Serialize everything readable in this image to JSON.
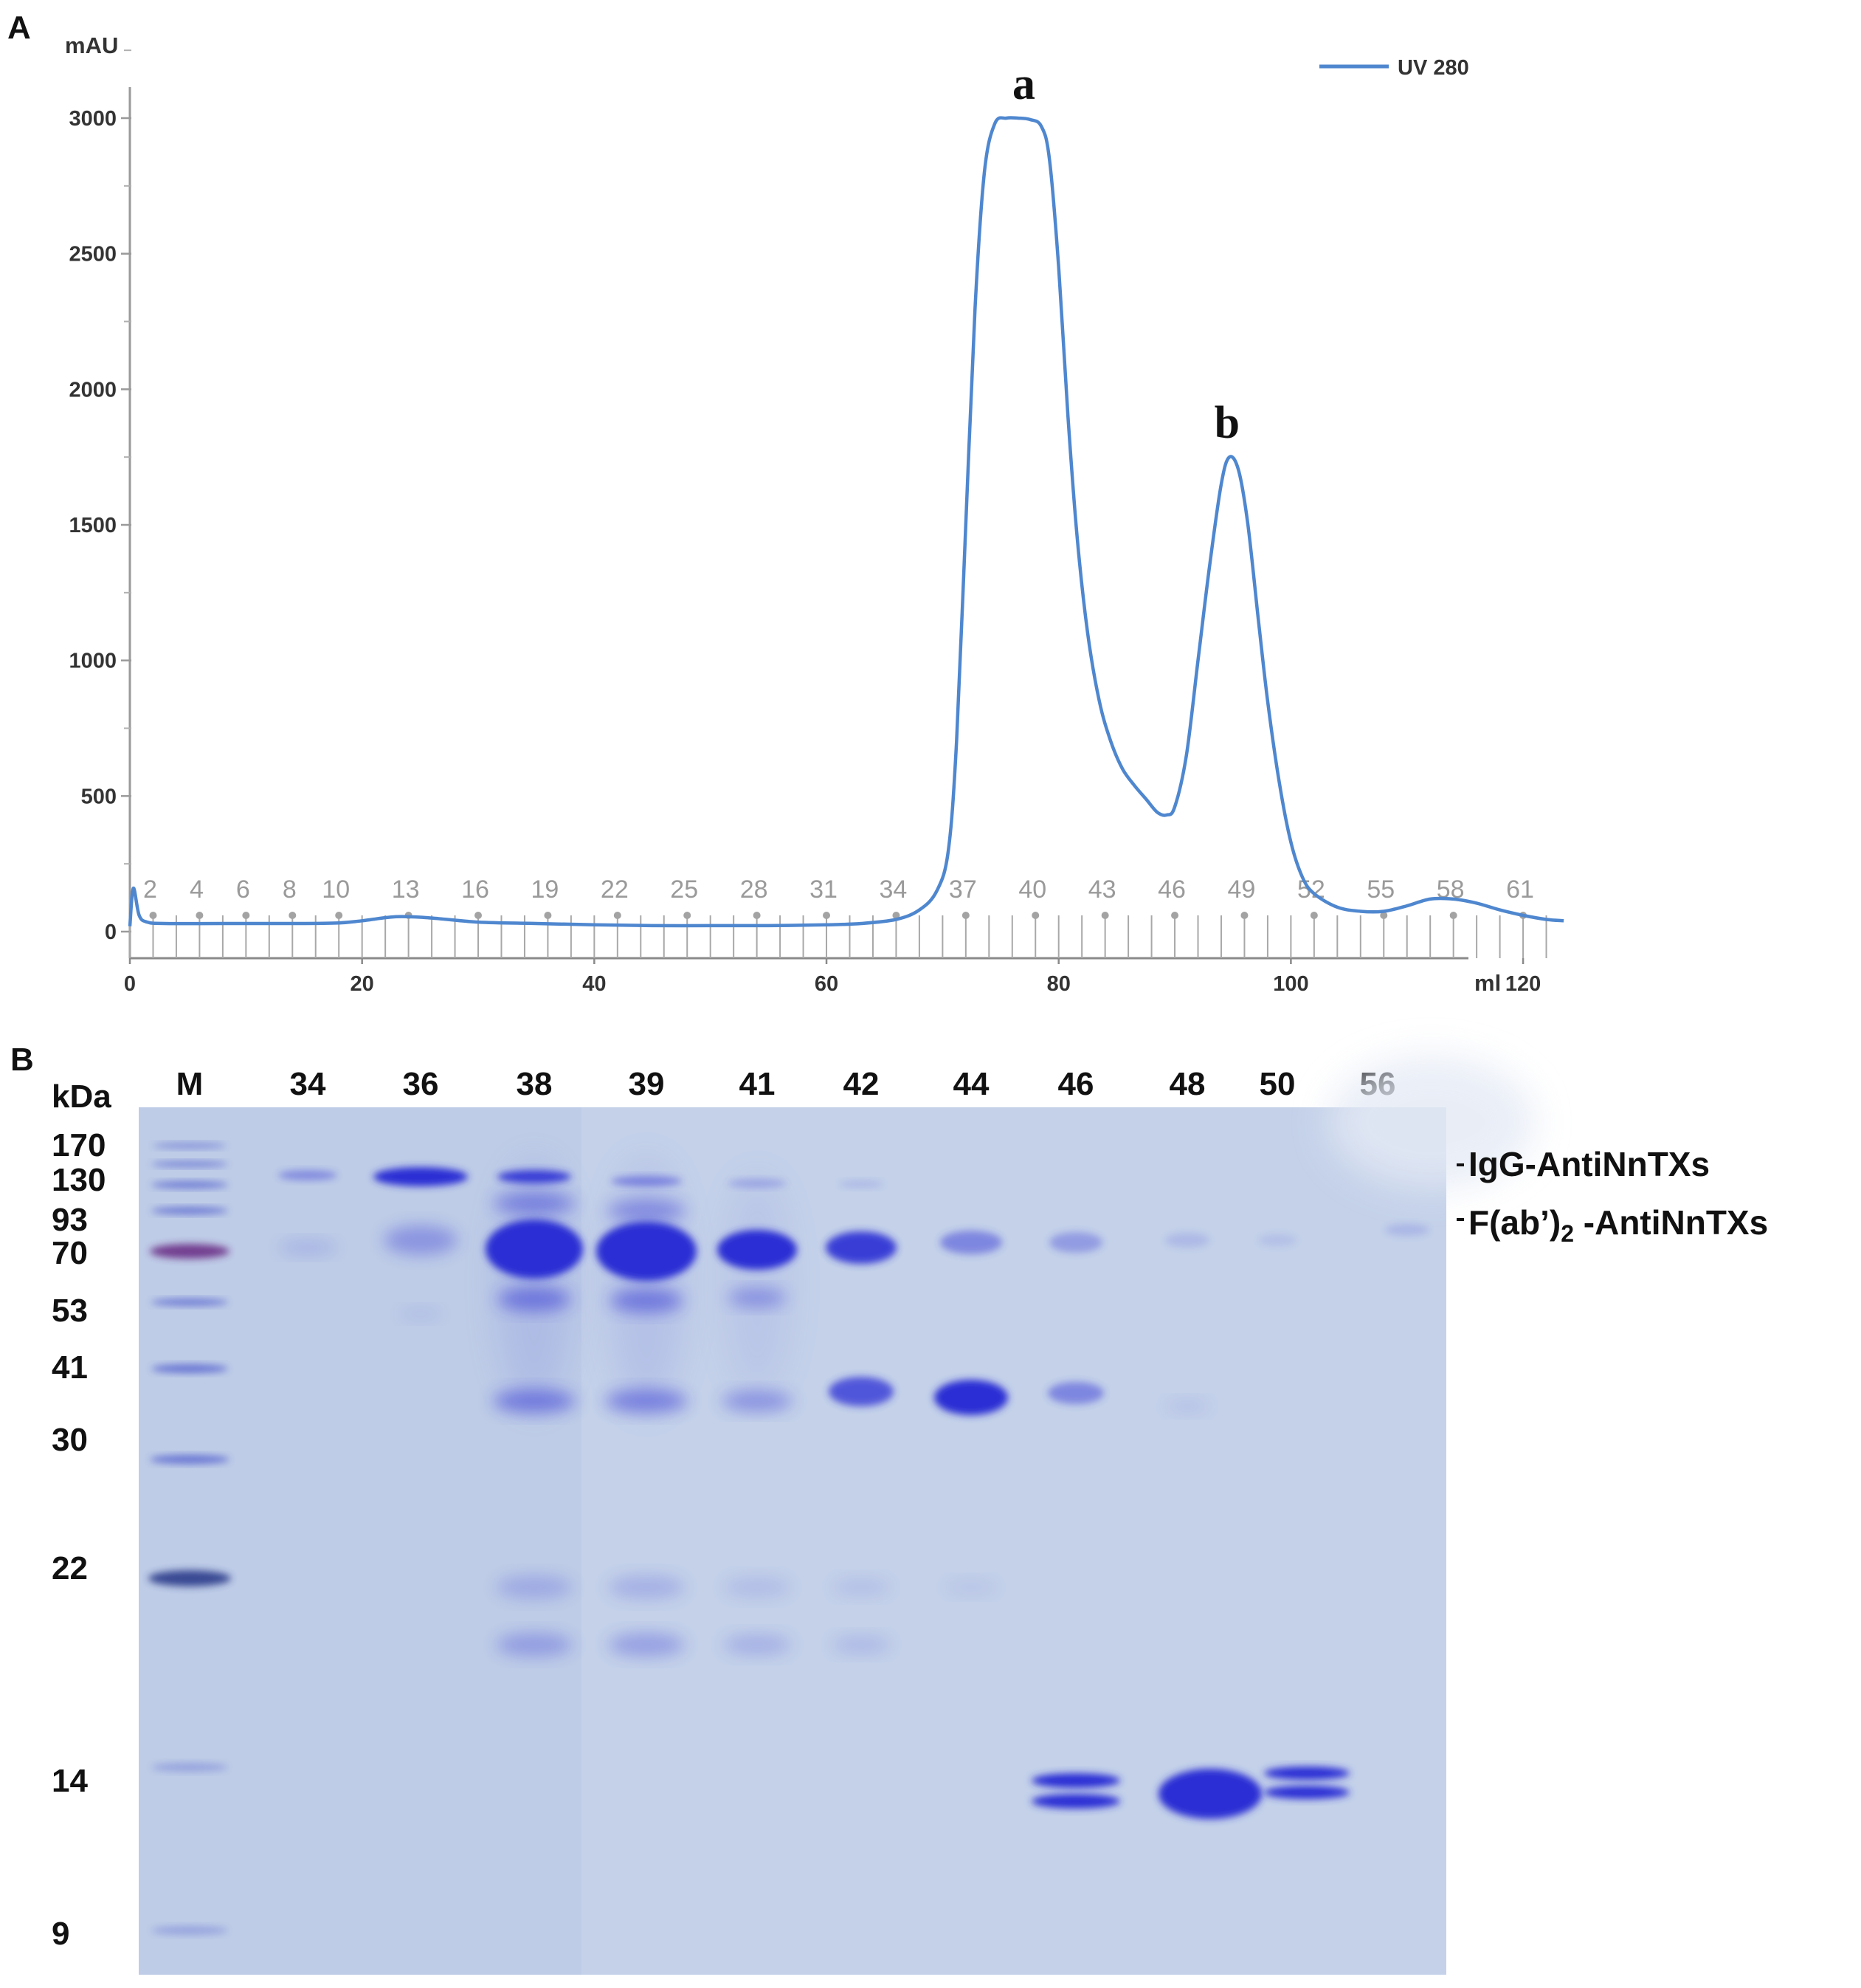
{
  "panel_a": {
    "letter": "A",
    "legend_label": "UV 280",
    "line_color": "#4f87cf",
    "fraction_labels": [
      "2",
      "4",
      "6",
      "8",
      "10",
      "13",
      "16",
      "19",
      "22",
      "25",
      "28",
      "31",
      "34",
      "37",
      "40",
      "43",
      "46",
      "49",
      "52",
      "55",
      "58",
      "61"
    ]
  },
  "chart_data": {
    "type": "line",
    "title": "",
    "xlabel": "ml",
    "ylabel": "mAU",
    "xlim": [
      0,
      124
    ],
    "ylim": [
      0,
      3000
    ],
    "xticks": [
      0,
      20,
      40,
      60,
      80,
      100,
      120
    ],
    "yticks": [
      0,
      500,
      1000,
      1500,
      2000,
      2500,
      3000
    ],
    "legend_position": "top-right",
    "grid": false,
    "annotations": [
      {
        "text": "a",
        "x": 77,
        "y": 3000
      },
      {
        "text": "b",
        "x": 94.5,
        "y": 1750
      }
    ],
    "series": [
      {
        "name": "UV 280",
        "x": [
          0,
          0.3,
          0.8,
          1.5,
          3,
          8,
          14,
          18,
          20,
          23,
          26,
          30,
          35,
          40,
          45,
          50,
          55,
          60,
          63,
          66,
          68,
          69.5,
          70.5,
          71.2,
          72,
          72.8,
          73.6,
          74.5,
          75.5,
          76.5,
          77.5,
          78.5,
          79.2,
          80,
          80.8,
          81.6,
          82.5,
          83.5,
          84.5,
          85.5,
          86.5,
          87.5,
          88.5,
          89.3,
          90,
          91,
          92,
          93,
          94,
          94.7,
          95.5,
          96.3,
          97.2,
          98,
          99,
          100,
          101,
          102,
          104,
          106,
          108,
          110,
          112,
          114,
          116,
          118,
          120,
          122,
          123.5
        ],
        "y": [
          20,
          160,
          60,
          35,
          30,
          30,
          30,
          32,
          40,
          55,
          50,
          35,
          30,
          25,
          22,
          22,
          22,
          25,
          30,
          45,
          80,
          150,
          300,
          700,
          1500,
          2300,
          2800,
          2980,
          3000,
          3000,
          2995,
          2970,
          2850,
          2450,
          1900,
          1450,
          1100,
          850,
          700,
          600,
          540,
          490,
          440,
          430,
          460,
          650,
          1000,
          1350,
          1650,
          1750,
          1700,
          1500,
          1150,
          850,
          550,
          330,
          200,
          140,
          90,
          75,
          75,
          95,
          120,
          120,
          105,
          80,
          60,
          45,
          40
        ]
      }
    ]
  },
  "panel_b": {
    "letter": "B",
    "kda_label": "kDa",
    "lane_labels": [
      "M",
      "34",
      "36",
      "38",
      "39",
      "41",
      "42",
      "44",
      "46",
      "48",
      "50",
      "56"
    ],
    "marker_labels": [
      "170",
      "130",
      "93",
      "70",
      "53",
      "41",
      "30",
      "22",
      "14",
      "9"
    ],
    "band_labels": [
      "IgG-AntiNnTXs",
      "F(ab’)",
      "2",
      " -AntiNnTXs"
    ],
    "gel_background": "#c4d1e9",
    "stain_color": "#2b2fd4"
  }
}
